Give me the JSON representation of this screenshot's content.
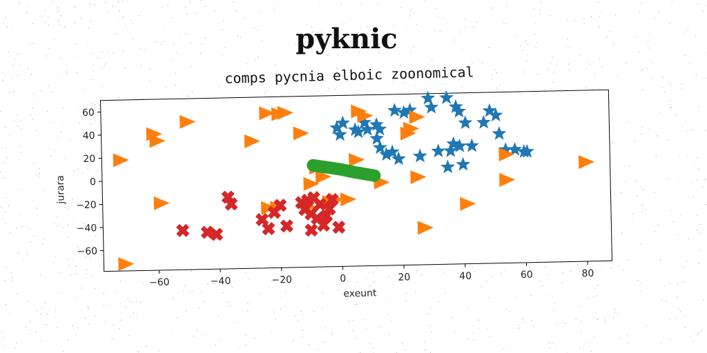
{
  "chart_data": {
    "type": "scatter",
    "title": "pyknic",
    "subtitle": "comps pycnia elboic zoonomical",
    "xlabel": "exeunt",
    "ylabel": "jurara",
    "xlim": [
      -78,
      88
    ],
    "ylim": [
      -78,
      70
    ],
    "xticks": [
      -60,
      -40,
      -20,
      0,
      20,
      40,
      60,
      80
    ],
    "yticks": [
      -60,
      -40,
      -20,
      0,
      20,
      40,
      60
    ],
    "grid": false,
    "series": [
      {
        "marker": "star",
        "color": "#1f77b4",
        "points": [
          [
            -1,
            42
          ],
          [
            0,
            36
          ],
          [
            1,
            46
          ],
          [
            5,
            40
          ],
          [
            6,
            38
          ],
          [
            8,
            46
          ],
          [
            9,
            40
          ],
          [
            12,
            44
          ],
          [
            13,
            40
          ],
          [
            18,
            56
          ],
          [
            21,
            54
          ],
          [
            23,
            56
          ],
          [
            29,
            66
          ],
          [
            30,
            58
          ],
          [
            35,
            66
          ],
          [
            38,
            58
          ],
          [
            39,
            54
          ],
          [
            41,
            44
          ],
          [
            47,
            44
          ],
          [
            49,
            54
          ],
          [
            51,
            50
          ],
          [
            52,
            34
          ],
          [
            12,
            32
          ],
          [
            13,
            24
          ],
          [
            15,
            18
          ],
          [
            17,
            20
          ],
          [
            19,
            14
          ],
          [
            26,
            16
          ],
          [
            32,
            20
          ],
          [
            36,
            20
          ],
          [
            37,
            26
          ],
          [
            39,
            24
          ],
          [
            43,
            24
          ],
          [
            54,
            20
          ],
          [
            57,
            20
          ],
          [
            60,
            18
          ],
          [
            61,
            18
          ],
          [
            35,
            6
          ],
          [
            40,
            8
          ]
        ]
      },
      {
        "marker": "triangle",
        "color": "#ff7f0e",
        "points": [
          [
            -72,
            18
          ],
          [
            -71,
            -72
          ],
          [
            -61,
            40
          ],
          [
            -60,
            34
          ],
          [
            -59,
            -20
          ],
          [
            -50,
            50
          ],
          [
            -29,
            32
          ],
          [
            -24,
            -26
          ],
          [
            -21,
            -26
          ],
          [
            -24,
            56
          ],
          [
            -20,
            55
          ],
          [
            -18,
            56
          ],
          [
            -13,
            38
          ],
          [
            -11,
            -26
          ],
          [
            -10,
            -6
          ],
          [
            -8,
            8
          ],
          [
            -6,
            0
          ],
          [
            -4,
            -22
          ],
          [
            -2,
            -20
          ],
          [
            2,
            -20
          ],
          [
            5,
            14
          ],
          [
            6,
            56
          ],
          [
            8,
            52
          ],
          [
            13,
            -6
          ],
          [
            22,
            36
          ],
          [
            23,
            40
          ],
          [
            25,
            50
          ],
          [
            25,
            -2
          ],
          [
            27,
            -46
          ],
          [
            41,
            -26
          ],
          [
            54,
            16
          ],
          [
            54,
            -6
          ],
          [
            80,
            8
          ]
        ]
      },
      {
        "marker": "x",
        "color": "#d62728",
        "points": [
          [
            -52,
            -44
          ],
          [
            -44,
            -46
          ],
          [
            -41,
            -48
          ],
          [
            -37,
            -16
          ],
          [
            -36,
            -22
          ],
          [
            -26,
            -36
          ],
          [
            -24,
            -44
          ],
          [
            -22,
            -30
          ],
          [
            -20,
            -24
          ],
          [
            -18,
            -42
          ],
          [
            -13,
            -22
          ],
          [
            -12,
            -28
          ],
          [
            -10,
            -32
          ],
          [
            -9,
            -18
          ],
          [
            -8,
            -36
          ],
          [
            -7,
            -24
          ],
          [
            -6,
            -42
          ],
          [
            -5,
            -34
          ],
          [
            -4,
            -28
          ],
          [
            -3,
            -20
          ],
          [
            -1,
            -44
          ],
          [
            -10,
            -46
          ],
          [
            -11,
            -20
          ]
        ]
      },
      {
        "marker": "line",
        "color": "#2ca02c",
        "points": [
          [
            -9,
            10
          ],
          [
            0,
            6
          ],
          [
            5,
            3
          ],
          [
            11,
            0
          ]
        ]
      }
    ]
  }
}
